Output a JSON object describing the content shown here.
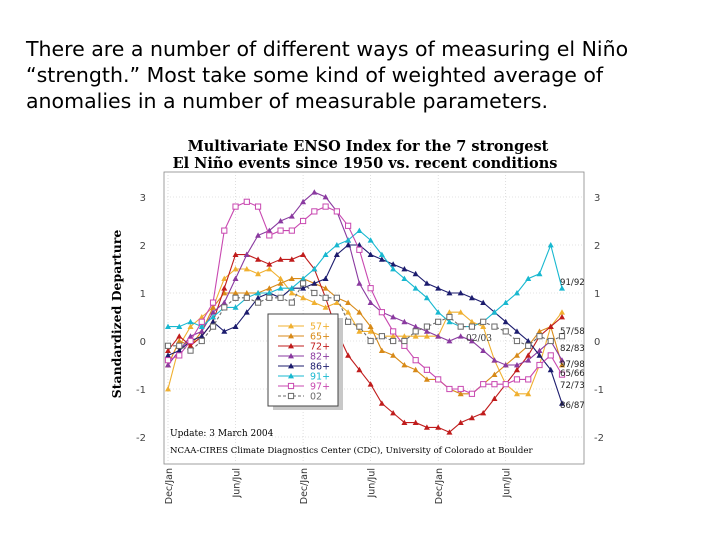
{
  "slide": {
    "text_lines": [
      "There are a number of different ways of measuring el Niño",
      "“strength.” Most take some kind of weighted average of",
      "anomalies in a number of measurable parameters."
    ]
  },
  "chart_data": {
    "type": "line",
    "title": "Multivariate ENSO Index for the 7 strongest El Niño events since 1950 vs. recent conditions",
    "title_lines": [
      "Multivariate ENSO Index for the 7 strongest",
      "El Niño events since 1950 vs. recent conditions"
    ],
    "xlabel": "",
    "ylabel": "Standardized Departure",
    "ylim": [
      -2,
      3
    ],
    "yticks": [
      3,
      2,
      1,
      0,
      -1,
      -2
    ],
    "yticks_right": [
      3,
      2,
      1,
      0,
      -1,
      -2
    ],
    "x_tick_labels": [
      "Dec/Jan",
      "Jun/Jul",
      "Dec/Jan",
      "Jun/Jul",
      "Dec/Jan",
      "Jun/Jul"
    ],
    "x_tick_index": [
      0,
      6,
      12,
      18,
      24,
      30
    ],
    "grid": true,
    "legend_position": "center-left",
    "annotations": {
      "update": "Update: 3 March 2004",
      "credit": "NCAA-CIRES Climate Diagnostics Center (CDC), University of Colorado at Boulder",
      "inline_label": "02/03"
    },
    "series": [
      {
        "name": "57+",
        "label": "57/58",
        "color": "#f0b030",
        "marker": "triangle",
        "values": [
          -1.0,
          -0.1,
          0.3,
          0.5,
          0.7,
          1.3,
          1.5,
          1.5,
          1.4,
          1.5,
          1.3,
          1.0,
          0.9,
          0.8,
          0.7,
          0.8,
          0.6,
          0.2,
          0.2,
          0.1,
          0.1,
          0.1,
          0.1,
          0.1,
          0.1,
          0.6,
          0.6,
          0.4,
          0.3,
          -0.4,
          -0.9,
          -1.1,
          -1.1,
          -0.5,
          0.3,
          0.6
        ]
      },
      {
        "name": "65+",
        "label": "65/66",
        "color": "#d88a18",
        "marker": "triangle",
        "values": [
          -0.5,
          0.0,
          -0.1,
          0.2,
          0.7,
          1.0,
          1.0,
          1.0,
          1.0,
          1.1,
          1.2,
          1.3,
          1.3,
          1.2,
          1.1,
          0.9,
          0.8,
          0.6,
          0.3,
          -0.2,
          -0.3,
          -0.5,
          -0.6,
          -0.8,
          -0.8,
          -1.0,
          -1.1,
          -1.1,
          -0.9,
          -0.7,
          -0.5,
          -0.3,
          -0.1,
          0.2,
          0.3,
          -0.5
        ]
      },
      {
        "name": "72+",
        "label": "72/73",
        "color": "#c01c1c",
        "marker": "triangle",
        "values": [
          -0.2,
          0.1,
          -0.1,
          0.1,
          0.4,
          1.1,
          1.8,
          1.8,
          1.7,
          1.6,
          1.7,
          1.7,
          1.8,
          1.5,
          0.9,
          0.2,
          -0.3,
          -0.6,
          -0.9,
          -1.3,
          -1.5,
          -1.7,
          -1.7,
          -1.8,
          -1.8,
          -1.9,
          -1.7,
          -1.6,
          -1.5,
          -1.2,
          -0.9,
          -0.6,
          -0.3,
          0.1,
          0.3,
          0.5
        ]
      },
      {
        "name": "82+",
        "label": "82/83",
        "color": "#8a3aa0",
        "marker": "triangle",
        "values": [
          -0.5,
          -0.2,
          0.1,
          0.2,
          0.6,
          0.8,
          1.3,
          1.8,
          2.2,
          2.3,
          2.5,
          2.6,
          2.9,
          3.1,
          3.0,
          2.7,
          2.1,
          1.2,
          0.8,
          0.6,
          0.5,
          0.4,
          0.3,
          0.2,
          0.1,
          0.0,
          0.1,
          0.0,
          -0.2,
          -0.4,
          -0.5,
          -0.5,
          -0.4,
          -0.2,
          0.0,
          -0.4
        ]
      },
      {
        "name": "86+",
        "label": "86/87",
        "color": "#1c1c6e",
        "marker": "triangle",
        "values": [
          -0.3,
          -0.2,
          0.0,
          0.1,
          0.4,
          0.2,
          0.3,
          0.6,
          0.9,
          1.0,
          0.9,
          1.1,
          1.1,
          1.2,
          1.3,
          1.8,
          2.0,
          2.0,
          1.8,
          1.7,
          1.6,
          1.5,
          1.4,
          1.2,
          1.1,
          1.0,
          1.0,
          0.9,
          0.8,
          0.6,
          0.4,
          0.2,
          0.0,
          -0.3,
          -0.6,
          -1.3
        ]
      },
      {
        "name": "91+",
        "label": "91/92",
        "color": "#18b8d0",
        "marker": "triangle",
        "values": [
          0.3,
          0.3,
          0.4,
          0.3,
          0.5,
          0.7,
          0.7,
          0.9,
          1.0,
          1.0,
          1.1,
          1.1,
          1.3,
          1.5,
          1.8,
          2.0,
          2.1,
          2.3,
          2.1,
          1.8,
          1.5,
          1.3,
          1.1,
          0.9,
          0.6,
          0.4,
          0.3,
          0.3,
          0.4,
          0.6,
          0.8,
          1.0,
          1.3,
          1.4,
          2.0,
          1.1
        ]
      },
      {
        "name": "97+",
        "label": "97/98",
        "color": "#c848b0",
        "marker": "square",
        "values": [
          -0.4,
          -0.3,
          0.0,
          0.4,
          0.8,
          2.3,
          2.8,
          2.9,
          2.8,
          2.2,
          2.3,
          2.3,
          2.5,
          2.7,
          2.8,
          2.7,
          2.4,
          1.9,
          1.1,
          0.6,
          0.2,
          -0.1,
          -0.4,
          -0.6,
          -0.8,
          -1.0,
          -1.0,
          -1.1,
          -0.9,
          -0.9,
          -0.9,
          -0.8,
          -0.8,
          -0.5,
          -0.3,
          -0.7
        ]
      },
      {
        "name": "02",
        "label": "02/03",
        "color": "#6a6a6a",
        "marker": "square",
        "values": [
          -0.1,
          -0.1,
          -0.2,
          0.0,
          0.3,
          0.7,
          0.9,
          0.9,
          0.8,
          0.9,
          0.9,
          0.8,
          1.2,
          1.0,
          0.9,
          0.9,
          0.4,
          0.3,
          0.0,
          0.1,
          0.0,
          0.0,
          0.2,
          0.3,
          0.4,
          0.5,
          0.3,
          0.3,
          0.4,
          0.3,
          0.2,
          0.0,
          -0.1,
          0.1,
          0.0,
          0.1
        ]
      }
    ]
  }
}
